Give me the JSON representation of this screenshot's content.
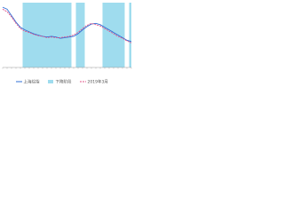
{
  "chart_data": {
    "type": "line",
    "categories": [
      null,
      null,
      null,
      null,
      null,
      null,
      null,
      null,
      null,
      null,
      null,
      null,
      null,
      null,
      null,
      null,
      null,
      null,
      null,
      null,
      null,
      null,
      null,
      null,
      null,
      null,
      null,
      null,
      null,
      null
    ],
    "series": [
      {
        "name": "上海综指",
        "color": "#2f6fd6",
        "values": [
          93,
          90,
          80,
          70,
          62,
          58,
          55,
          52,
          50,
          48,
          47,
          48,
          47,
          45,
          46,
          47,
          48,
          52,
          58,
          63,
          67,
          68,
          66,
          62,
          58,
          54,
          50,
          46,
          42,
          40
        ]
      },
      {
        "name": "2019年3月",
        "color": "#e0558a",
        "dashed": true,
        "values": [
          90,
          86,
          78,
          68,
          60,
          56,
          54,
          51,
          49,
          48,
          46,
          47,
          46,
          46,
          47,
          48,
          50,
          54,
          60,
          65,
          68,
          66,
          64,
          60,
          56,
          52,
          48,
          45,
          41,
          38
        ]
      }
    ],
    "shaded": {
      "name": "下降阶段",
      "color": "#9fdcee",
      "ranges": [
        [
          5,
          15
        ],
        [
          17,
          18
        ],
        [
          23,
          25
        ],
        [
          26,
          27
        ],
        [
          29,
          29
        ]
      ]
    },
    "ylim": [
      0,
      100
    ]
  }
}
